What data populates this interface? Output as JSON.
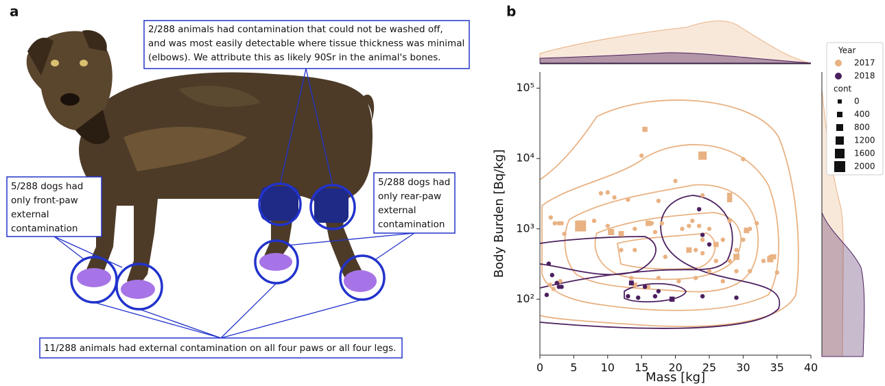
{
  "panel_a": {
    "label": "a",
    "annotations": [
      {
        "lines": [
          "2/288 animals had contamination that could not be washed off,",
          "and was most easily detectable where tissue thickness was minimal",
          "(elbows). We attribute this as likely 90Sr in the animal's bones."
        ]
      },
      {
        "lines": [
          "5/288 dogs had",
          "only front-paw",
          "external",
          "contamination"
        ]
      },
      {
        "lines": [
          "5/288 dogs had",
          "only rear-paw",
          "external",
          "contamination"
        ]
      },
      {
        "lines": [
          "11/288 animals had external contamination on all four paws or all four legs."
        ]
      }
    ]
  },
  "chart_data": {
    "type": "scatter",
    "label": "b",
    "xlabel": "Mass [kg]",
    "ylabel": "Body Burden [Bq/kg]",
    "xlim": [
      0,
      40
    ],
    "xticks": [
      0,
      5,
      10,
      15,
      20,
      25,
      30,
      35,
      40
    ],
    "ylim": [
      16,
      170000
    ],
    "yscale": "log",
    "yticks": [
      {
        "value": 100,
        "label": "10²"
      },
      {
        "value": 1000,
        "label": "10³"
      },
      {
        "value": 10000,
        "label": "10⁴"
      },
      {
        "value": 100000,
        "label": "10⁵"
      }
    ],
    "legend_title": "Year",
    "size_title": "cont",
    "size_legend": [
      0,
      400,
      800,
      1200,
      1600,
      2000
    ],
    "series": [
      {
        "name": "2017",
        "color": "#e9b283",
        "x": [
          1.6,
          2.2,
          2.8,
          3.2,
          3.6,
          2,
          1.5,
          3,
          8,
          9,
          10,
          10,
          11,
          12,
          13,
          13.5,
          14,
          14,
          15,
          16,
          16.5,
          17,
          17.5,
          17.5,
          18,
          18.5,
          20,
          20.5,
          21,
          22,
          22.5,
          23,
          23.5,
          23,
          24,
          24,
          24,
          25,
          25,
          26,
          27,
          27,
          28,
          28,
          29,
          29,
          30,
          30,
          31,
          31,
          32,
          33,
          34,
          35,
          6,
          10.5,
          12,
          14,
          15.5,
          16,
          24,
          22,
          26,
          28,
          28,
          29,
          30.5,
          34,
          34.5
        ],
        "values": [
          1450,
          1200,
          1200,
          1200,
          850,
          140,
          160,
          180,
          1300,
          3200,
          1100,
          3300,
          2800,
          500,
          2600,
          200,
          500,
          1000,
          11000,
          150,
          1200,
          900,
          2500,
          200,
          1200,
          400,
          4800,
          180,
          1000,
          1100,
          1300,
          200,
          1100,
          500,
          3000,
          700,
          450,
          250,
          1000,
          350,
          700,
          180,
          350,
          1300,
          250,
          500,
          9800,
          700,
          1000,
          250,
          1200,
          350,
          400,
          240,
          1100,
          900,
          850,
          160,
          26000,
          1200,
          11000,
          500,
          600,
          3000,
          2600,
          400,
          950,
          370,
          400
        ],
        "cont": [
          0,
          0,
          0,
          0,
          0,
          0,
          0,
          0,
          0,
          0,
          0,
          0,
          0,
          0,
          0,
          0,
          0,
          0,
          0,
          0,
          0,
          0,
          0,
          0,
          0,
          0,
          0,
          0,
          0,
          0,
          0,
          0,
          0,
          0,
          0,
          0,
          0,
          0,
          0,
          0,
          0,
          0,
          0,
          0,
          0,
          0,
          0,
          0,
          0,
          0,
          0,
          0,
          0,
          0,
          2000,
          600,
          400,
          200,
          300,
          400,
          1200,
          400,
          300,
          300,
          300,
          600,
          400,
          600,
          300
        ]
      },
      {
        "name": "2018",
        "color": "#4b1f5e",
        "x": [
          1.3,
          1.8,
          2.5,
          2.8,
          3.2,
          1,
          13,
          14.5,
          15.5,
          17,
          17.5,
          23.5,
          24,
          25,
          24,
          29,
          13.5,
          19.5
        ],
        "values": [
          320,
          220,
          170,
          150,
          150,
          115,
          110,
          105,
          150,
          110,
          130,
          1900,
          820,
          600,
          110,
          105,
          170,
          100
        ],
        "cont": [
          0,
          0,
          0,
          0,
          0,
          0,
          0,
          0,
          0,
          0,
          0,
          0,
          0,
          0,
          0,
          0,
          200,
          300
        ]
      }
    ]
  }
}
